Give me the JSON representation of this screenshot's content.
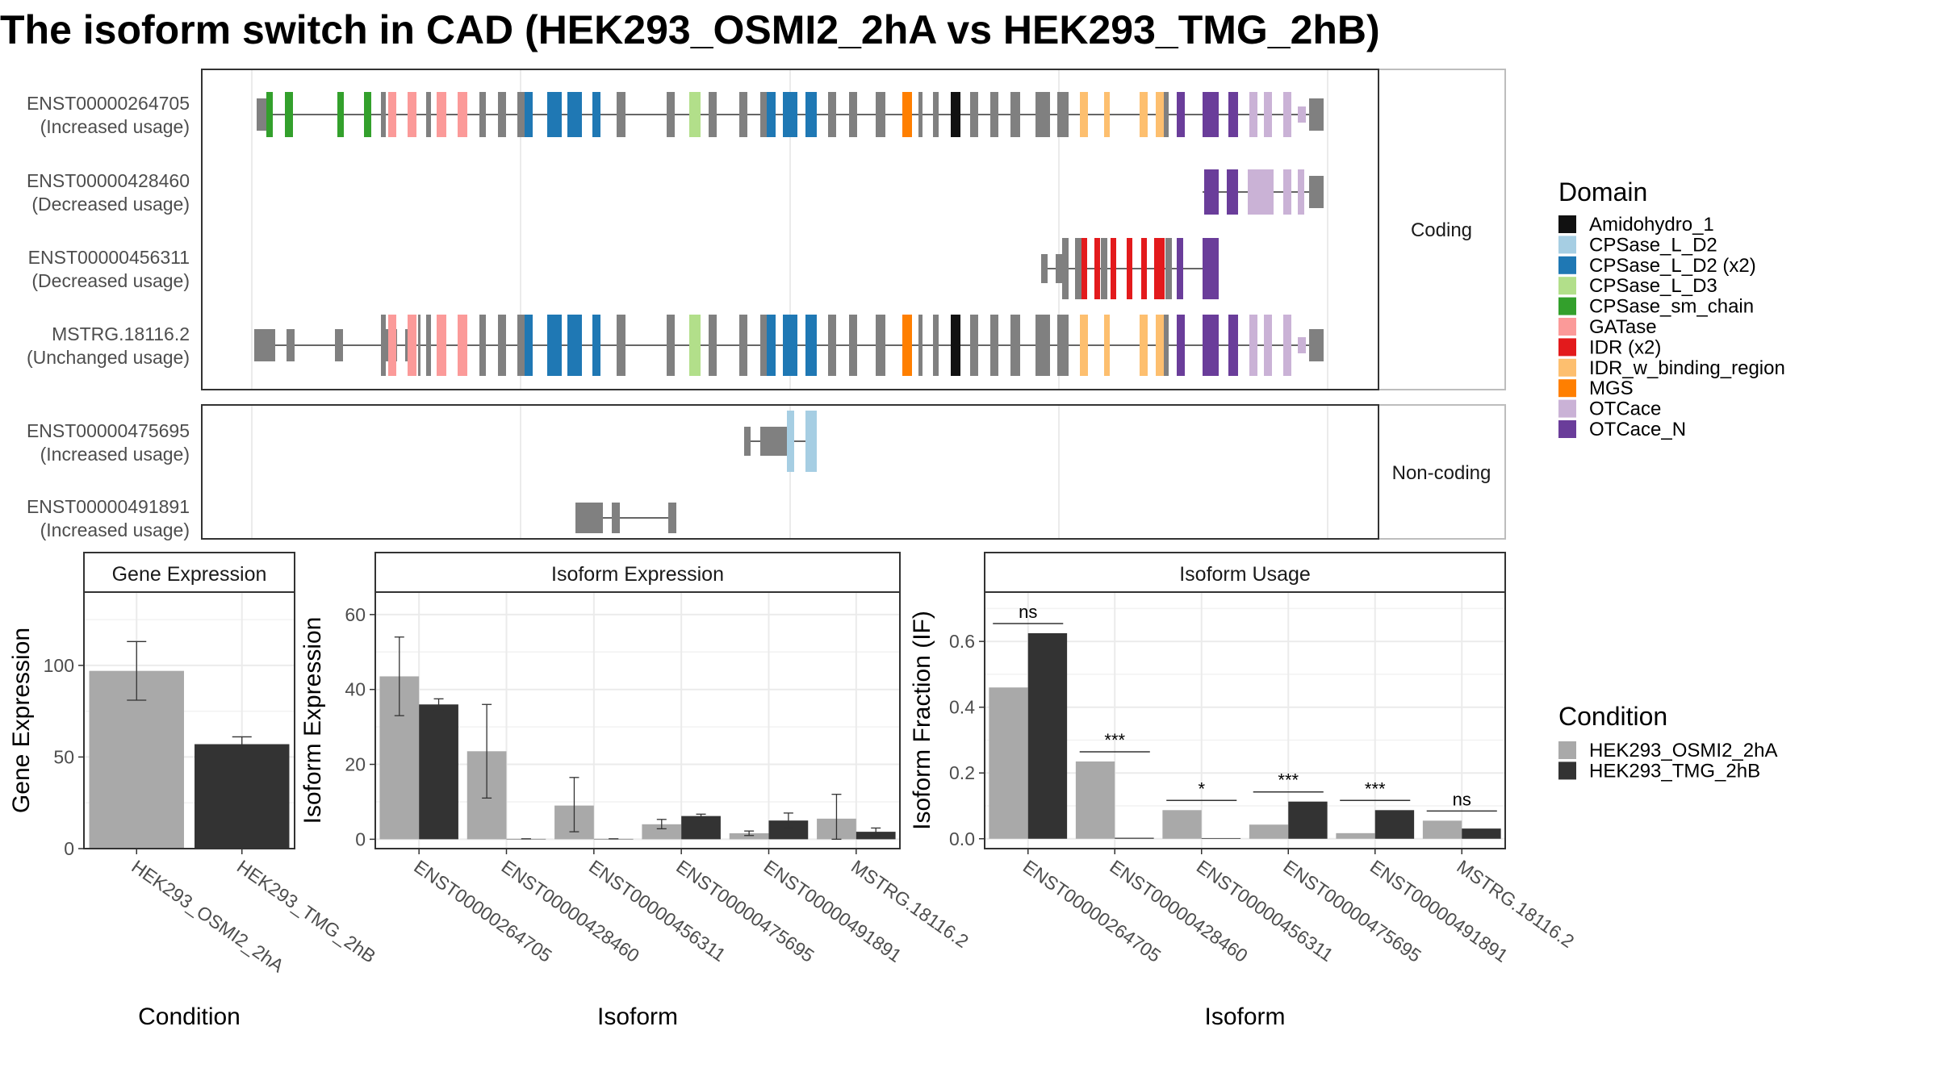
{
  "title": "The isoform switch in CAD (HEK293_OSMI2_2hA vs HEK293_TMG_2hB)",
  "colors": {
    "Amidohydro_1": "#111111",
    "CPSase_L_D2": "#a6cee3",
    "CPSase_L_D2 (x2)": "#1f78b4",
    "CPSase_L_D3": "#b2df8a",
    "CPSase_sm_chain": "#33a02c",
    "GATase": "#fb9a99",
    "IDR (x2)": "#e31a1c",
    "IDR_w_binding_region": "#fdbf6f",
    "MGS": "#ff7f00",
    "OTCace": "#cab2d6",
    "OTCace_N": "#6a3d9a",
    "none": "#808080",
    "condA": "#a9a9a9",
    "condB": "#333333"
  },
  "structure": {
    "strip_coding": "Coding",
    "strip_noncoding": "Non-coding",
    "coding_tracks": [
      {
        "id": "ENST00000264705",
        "label": "(Increased usage)"
      },
      {
        "id": "ENST00000428460",
        "label": "(Decreased usage)"
      },
      {
        "id": "ENST00000456311",
        "label": "(Decreased usage)"
      },
      {
        "id": "MSTRG.18116.2",
        "label": "(Unchanged usage)"
      }
    ],
    "noncoding_tracks": [
      {
        "id": "ENST00000475695",
        "label": "(Increased usage)"
      },
      {
        "id": "ENST00000491891",
        "label": "(Increased usage)"
      }
    ]
  },
  "legend_domain": {
    "title": "Domain",
    "items": [
      "Amidohydro_1",
      "CPSase_L_D2",
      "CPSase_L_D2 (x2)",
      "CPSase_L_D3",
      "CPSase_sm_chain",
      "GATase",
      "IDR (x2)",
      "IDR_w_binding_region",
      "MGS",
      "OTCace",
      "OTCace_N"
    ]
  },
  "legend_condition": {
    "title": "Condition",
    "items": [
      "HEK293_OSMI2_2hA",
      "HEK293_TMG_2hB"
    ]
  },
  "chart_data": [
    {
      "type": "bar",
      "title": "Gene Expression",
      "xlabel": "Condition",
      "ylabel": "Gene Expression",
      "categories": [
        "HEK293_OSMI2_2hA",
        "HEK293_TMG_2hB"
      ],
      "values": [
        97,
        57
      ],
      "error_low": [
        81,
        54
      ],
      "error_high": [
        113,
        61
      ],
      "ylim": [
        0,
        140
      ],
      "yticks": [
        0,
        50,
        100
      ]
    },
    {
      "type": "bar",
      "title": "Isoform Expression",
      "xlabel": "Isoform",
      "ylabel": "Isoform Expression",
      "categories": [
        "ENST00000264705",
        "ENST00000428460",
        "ENST00000456311",
        "ENST00000475695",
        "ENST00000491891",
        "MSTRG.18116.2"
      ],
      "series": [
        {
          "name": "HEK293_OSMI2_2hA",
          "values": [
            43.5,
            23.5,
            9,
            4,
            1.6,
            5.5
          ],
          "error_low": [
            33,
            11,
            2,
            2.8,
            1,
            0
          ],
          "error_high": [
            54,
            36,
            16.5,
            5.3,
            2.2,
            12
          ]
        },
        {
          "name": "HEK293_TMG_2hB",
          "values": [
            36,
            0.1,
            0.1,
            6.2,
            5,
            2
          ],
          "error_low": [
            34.5,
            0.1,
            0.1,
            5.8,
            3,
            1
          ],
          "error_high": [
            37.5,
            0.1,
            0.1,
            6.7,
            7,
            3
          ]
        }
      ],
      "ylim": [
        -2.5,
        66
      ],
      "yticks": [
        0,
        20,
        40,
        60
      ]
    },
    {
      "type": "bar",
      "title": "Isoform Usage",
      "xlabel": "Isoform",
      "ylabel": "Isoform Fraction (IF)",
      "categories": [
        "ENST00000264705",
        "ENST00000428460",
        "ENST00000456311",
        "ENST00000475695",
        "ENST00000491891",
        "MSTRG.18116.2"
      ],
      "series": [
        {
          "name": "HEK293_OSMI2_2hA",
          "values": [
            0.46,
            0.235,
            0.087,
            0.043,
            0.017,
            0.055
          ]
        },
        {
          "name": "HEK293_TMG_2hB",
          "values": [
            0.625,
            0.003,
            0.002,
            0.113,
            0.087,
            0.031
          ]
        }
      ],
      "significance": [
        "ns",
        "***",
        "*",
        "***",
        "***",
        "ns"
      ],
      "ylim": [
        -0.03,
        0.75
      ],
      "yticks": [
        0.0,
        0.2,
        0.4,
        0.6
      ],
      "ytick_labels": [
        "0.0",
        "0.2",
        "0.4",
        "0.6"
      ]
    }
  ]
}
